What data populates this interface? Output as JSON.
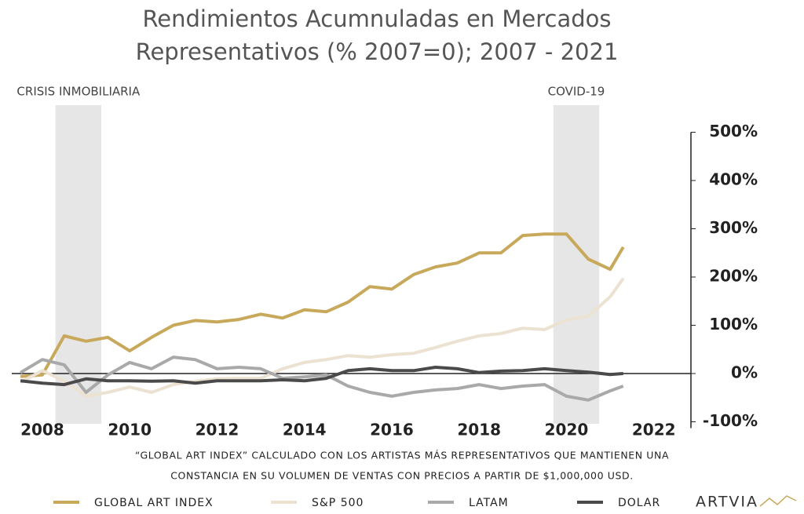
{
  "chart_data": {
    "type": "line",
    "title": [
      "Rendimientos Acumnuladas en Mercados",
      "Representativos (% 2007=0); 2007 - 2021"
    ],
    "footnote": [
      "“GLOBAL ART INDEX” CALCULADO CON LOS ARTISTAS MÁS REPRESENTATIVOS QUE MANTIENEN UNA",
      "CONSTANCIA EN SU VOLUMEN DE VENTAS CON PRECIOS A PARTIR DE $1,000,000 USD."
    ],
    "logo": "ARTVIA",
    "shaded_regions": [
      {
        "label": "CRISIS INMOBILIARIA",
        "xlim": [
          2008.3,
          2009.35
        ]
      },
      {
        "label": "COVID-19",
        "xlim": [
          2019.7,
          2020.75
        ]
      }
    ],
    "x": [
      2007.5,
      2008,
      2008.5,
      2009,
      2009.5,
      2010,
      2010.5,
      2011,
      2011.5,
      2012,
      2012.5,
      2013,
      2013.5,
      2014,
      2014.5,
      2015,
      2015.5,
      2016,
      2016.5,
      2017,
      2017.5,
      2018,
      2018.5,
      2019,
      2019.5,
      2020,
      2020.5,
      2021,
      2021.3
    ],
    "series": [
      {
        "name": "GLOBAL ART INDEX",
        "color": "#c8a95c",
        "values": [
          -6,
          -3,
          78,
          67,
          75,
          47,
          75,
          100,
          110,
          107,
          112,
          123,
          115,
          132,
          128,
          148,
          180,
          175,
          205,
          221,
          229,
          250,
          250,
          286,
          289,
          289,
          237,
          216,
          262
        ]
      },
      {
        "name": "S&P 500",
        "color": "#ece2d2",
        "values": [
          -18,
          6,
          -15,
          -47,
          -39,
          -28,
          -39,
          -23,
          -16,
          -11,
          -10,
          -10,
          10,
          23,
          29,
          37,
          34,
          39,
          42,
          54,
          67,
          78,
          83,
          94,
          91,
          111,
          119,
          159,
          197
        ]
      },
      {
        "name": "LATAM",
        "color": "#a9a9a9",
        "values": [
          2,
          29,
          18,
          -39,
          -3,
          23,
          10,
          34,
          29,
          10,
          13,
          10,
          -10,
          -7,
          -3,
          -26,
          -39,
          -47,
          -39,
          -34,
          -31,
          -23,
          -31,
          -26,
          -23,
          -47,
          -55,
          -36,
          -26
        ]
      },
      {
        "name": "DOLAR",
        "color": "#4a4a4a",
        "values": [
          -15,
          -20,
          -23,
          -11,
          -15,
          -15,
          -16,
          -15,
          -20,
          -15,
          -15,
          -15,
          -13,
          -15,
          -10,
          6,
          10,
          6,
          6,
          13,
          10,
          2,
          5,
          6,
          10,
          6,
          3,
          -2,
          0
        ]
      }
    ],
    "xlim": [
      2007.3,
      2022.85
    ],
    "xticks": [
      2008,
      2010,
      2012,
      2014,
      2016,
      2018,
      2020,
      2022
    ],
    "ylim": [
      -100,
      500
    ],
    "yticks": [
      {
        "value": 500,
        "label": "500%"
      },
      {
        "value": 400,
        "label": "400%"
      },
      {
        "value": 300,
        "label": "300%"
      },
      {
        "value": 200,
        "label": "200%"
      },
      {
        "value": 100,
        "label": "100%"
      },
      {
        "value": 0,
        "label": "0%"
      },
      {
        "value": -100,
        "label": "-100%"
      }
    ]
  }
}
